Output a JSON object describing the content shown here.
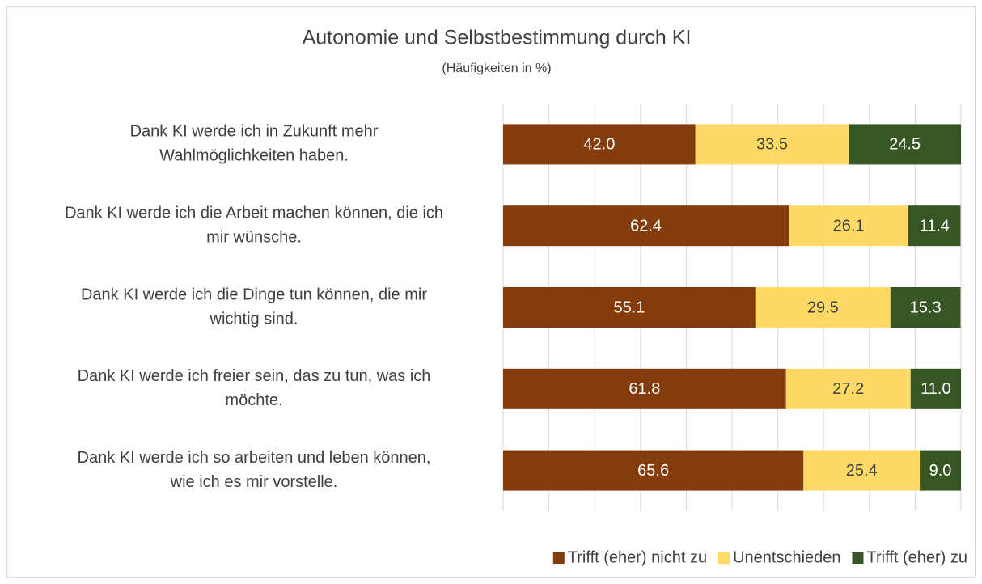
{
  "chart_data": {
    "type": "stacked_barh",
    "title": "Autonomie und Selbstbestimmung durch KI",
    "subtitle": "(Häufigkeiten in %)",
    "categories": [
      [
        "Dank KI werde ich in Zukunft mehr",
        "Wahlmöglichkeiten haben."
      ],
      [
        "Dank KI werde ich die Arbeit machen können, die ich",
        "mir wünsche."
      ],
      [
        "Dank KI werde ich die Dinge tun können, die mir",
        "wichtig sind."
      ],
      [
        "Dank KI werde ich freier sein, das zu tun, was ich",
        "möchte."
      ],
      [
        "Dank KI werde ich so arbeiten und leben können,",
        "wie ich es mir vorstelle."
      ]
    ],
    "series": [
      {
        "name": "Trifft (eher) nicht zu",
        "color": "#843c0c",
        "label_color": "#ffffff",
        "values": [
          42,
          62.4,
          55.1,
          61.8,
          65.6
        ],
        "value_labels": [
          "42.0",
          "62.4",
          "55.1",
          "61.8",
          "65.6"
        ]
      },
      {
        "name": "Unentschieden",
        "color": "#ffd966",
        "label_color": "#404040",
        "values": [
          33.5,
          26.1,
          29.5,
          27.2,
          25.4
        ],
        "value_labels": [
          "33.5",
          "26.1",
          "29.5",
          "27.2",
          "25.4"
        ]
      },
      {
        "name": "Trifft (eher) zu",
        "color": "#375623",
        "label_color": "#ffffff",
        "values": [
          24.5,
          11.4,
          15.3,
          11,
          9
        ],
        "value_labels": [
          "24.5",
          "11.4",
          "15.3",
          "11.0",
          "9.0"
        ]
      }
    ],
    "xlim": [
      0,
      100
    ],
    "xticks": [
      0,
      10,
      20,
      30,
      40,
      50,
      60,
      70,
      80,
      90,
      100
    ],
    "grid": true,
    "legend": "bottom-right"
  }
}
